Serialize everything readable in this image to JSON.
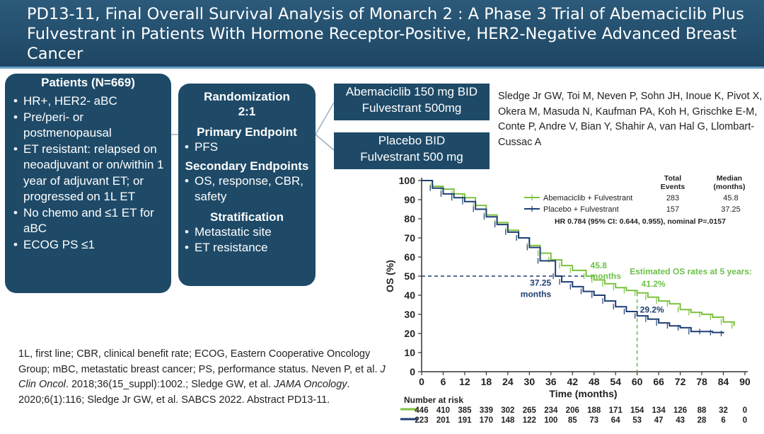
{
  "header": {
    "title": "PD13-11, Final Overall Survival Analysis of Monarch 2 : A Phase 3 Trial of Abemaciclib Plus Fulvestrant in Patients With Hormone Receptor-Positive, HER2-Negative Advanced Breast Cancer"
  },
  "patients": {
    "title": "Patients (N=669)",
    "items": [
      "HR+, HER2- aBC",
      "Pre/peri- or postmenopausal",
      "ET resistant: relapsed on neoadjuvant or on/within 1 year of adjuvant ET; or progressed on 1L ET",
      "No chemo and ≤1 ET for aBC",
      "ECOG PS ≤1"
    ]
  },
  "design": {
    "randomization": "Randomization 2:1",
    "primary_title": "Primary Endpoint",
    "primary_items": [
      "PFS"
    ],
    "secondary_title": "Secondary Endpoints",
    "secondary_items": [
      "OS, response, CBR, safety"
    ],
    "stratification_title": "Stratification",
    "stratification_items": [
      "Metastatic site",
      "ET resistance"
    ]
  },
  "arms": [
    {
      "line1": "Abemaciclib 150 mg BID",
      "line2": "Fulvestrant 500mg"
    },
    {
      "line1": "Placebo BID",
      "line2": "Fulvestrant 500 mg"
    }
  ],
  "authors": "Sledge Jr GW, Toi M, Neven P, Sohn JH, Inoue K, Pivot X, Okera M, Masuda N, Kaufman PA, Koh H, Grischke E-M, Conte P, Andre V, Bian Y, Shahir A, van Hal G, Llombart-Cussac A",
  "footnote": {
    "abbrev": "1L, first line; CBR, clinical benefit rate; ECOG, Eastern Cooperative Oncology Group; mBC, metastatic breast cancer; PS, performance status.",
    "ref1_a": "Neven P, et al. ",
    "ref1_journal": "J Clin Oncol",
    "ref1_b": ". 2018;36(15_suppl):1002.; Sledge GW, et al. ",
    "ref2_journal": "JAMA Oncology",
    "ref2_b": ". 2020;6(1):116; Sledge Jr GW, et al. SABCS 2022. Abstract PD13-11."
  },
  "colors": {
    "header_bg": "#1e4664",
    "box_bg": "#1e4a68",
    "abema": "#7cc23f",
    "placebo": "#1f3f73",
    "annot_green": "#6cc04a",
    "annot_blue": "#1f3f73"
  },
  "chart_data": {
    "type": "line",
    "xlabel": "Time (months)",
    "ylabel": "OS (%)",
    "xlim": [
      0,
      90
    ],
    "ylim": [
      0,
      100
    ],
    "xticks": [
      0,
      6,
      12,
      18,
      24,
      30,
      36,
      42,
      48,
      54,
      60,
      66,
      72,
      78,
      84,
      90
    ],
    "yticks": [
      0,
      10,
      20,
      30,
      40,
      50,
      60,
      70,
      80,
      90,
      100
    ],
    "legend": {
      "col1": "Total Events",
      "col2": "Median (months)",
      "rows": [
        {
          "name": "Abemaciclib + Fulvestrant",
          "events": "283",
          "median": "45.8"
        },
        {
          "name": "Placebo + Fulvestrant",
          "events": "157",
          "median": "37.25"
        }
      ],
      "hr": "HR 0.784 (95% CI: 0.644, 0.955), nominal P=.0157"
    },
    "series": [
      {
        "name": "Abemaciclib + Fulvestrant",
        "x": [
          0,
          3,
          6,
          9,
          12,
          15,
          18,
          21,
          24,
          27,
          30,
          33,
          36,
          39,
          42,
          45.8,
          48,
          51,
          54,
          57,
          60,
          63,
          66,
          69,
          72,
          75,
          78,
          81,
          84,
          87
        ],
        "y": [
          100,
          97,
          95.5,
          93,
          91,
          87,
          82,
          78,
          74,
          70,
          66,
          62,
          58.5,
          55.5,
          53,
          50,
          48,
          46,
          44,
          42.5,
          41.2,
          39,
          37,
          35.5,
          32.5,
          31,
          30,
          28.5,
          26,
          24
        ]
      },
      {
        "name": "Placebo + Fulvestrant",
        "x": [
          0,
          3,
          6,
          9,
          12,
          15,
          18,
          21,
          24,
          27,
          30,
          33,
          37.25,
          39,
          42,
          45,
          48,
          51,
          54,
          57,
          60,
          63,
          66,
          69,
          72,
          75,
          78,
          81,
          84
        ],
        "y": [
          100,
          96,
          93,
          91,
          89,
          85,
          81,
          77,
          73,
          70,
          65,
          58,
          50,
          47,
          44.5,
          42,
          40,
          37,
          34,
          31.5,
          29.2,
          27.5,
          25.5,
          24,
          23,
          21,
          21,
          20.5,
          20
        ]
      }
    ],
    "annotations": {
      "abema_median_value": "45.8",
      "abema_median_unit": "months",
      "placebo_median_value": "37.25",
      "placebo_median_unit": "months",
      "os5_label_1": "Estimated OS rates at 5 years:",
      "os5_abema": "41.2%",
      "os5_placebo": "29.2%"
    },
    "risk_table": {
      "title": "Number at risk",
      "abema": [
        "446",
        "410",
        "385",
        "339",
        "302",
        "265",
        "234",
        "206",
        "188",
        "171",
        "154",
        "134",
        "126",
        "88",
        "32",
        "0"
      ],
      "placebo": [
        "223",
        "201",
        "191",
        "170",
        "148",
        "122",
        "100",
        "85",
        "73",
        "64",
        "53",
        "47",
        "43",
        "28",
        "6",
        "0"
      ]
    }
  }
}
